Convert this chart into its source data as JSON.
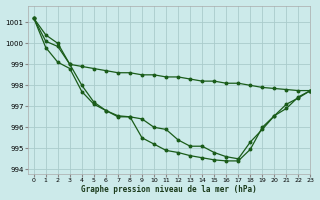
{
  "title": "Graphe pression niveau de la mer (hPa)",
  "background_color": "#cceaea",
  "grid_color": "#aacccc",
  "line_color": "#1a5c1a",
  "xlim": [
    -0.5,
    23
  ],
  "ylim": [
    993.8,
    1001.8
  ],
  "yticks": [
    994,
    995,
    996,
    997,
    998,
    999,
    1000,
    1001
  ],
  "xtick_labels": [
    "0",
    "1",
    "2",
    "3",
    "4",
    "5",
    "6",
    "7",
    "8",
    "9",
    "10",
    "11",
    "12",
    "13",
    "14",
    "15",
    "16",
    "17",
    "18",
    "19",
    "20",
    "21",
    "22",
    "23"
  ],
  "series": [
    [
      1001.2,
      1000.4,
      1000.0,
      999.0,
      998.9,
      998.8,
      998.7,
      998.6,
      998.6,
      998.5,
      998.5,
      998.4,
      998.4,
      998.3,
      998.2,
      998.2,
      998.1,
      998.1,
      998.0,
      997.9,
      997.85,
      997.8,
      997.75,
      997.75
    ],
    [
      1001.2,
      1000.1,
      999.85,
      999.0,
      998.0,
      997.2,
      996.8,
      996.5,
      996.5,
      996.4,
      996.0,
      995.9,
      995.4,
      995.1,
      995.1,
      994.8,
      994.6,
      994.5,
      995.3,
      995.9,
      996.55,
      997.1,
      997.4,
      997.75
    ],
    [
      1001.2,
      999.8,
      999.1,
      998.8,
      997.7,
      997.1,
      996.8,
      996.55,
      996.5,
      995.5,
      995.2,
      994.9,
      994.8,
      994.65,
      994.55,
      994.45,
      994.4,
      994.4,
      994.95,
      996.0,
      996.55,
      996.9,
      997.45,
      997.75
    ]
  ]
}
